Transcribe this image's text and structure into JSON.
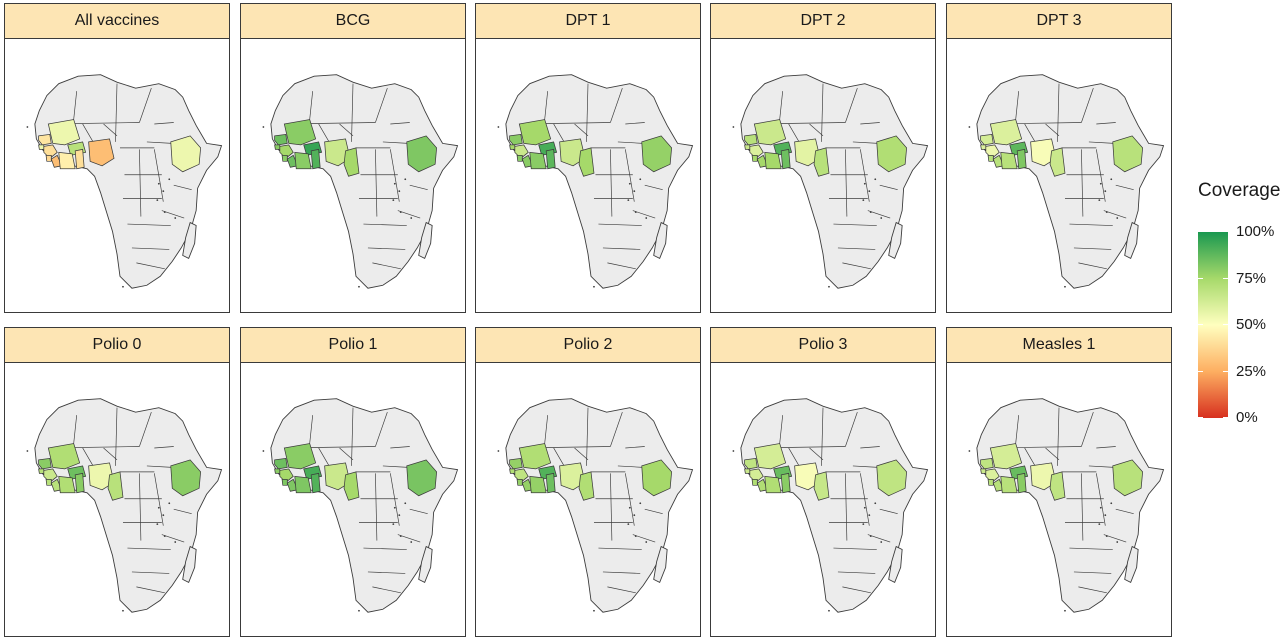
{
  "legend": {
    "title": "Coverage",
    "ticks": [
      {
        "label": "100%",
        "value": 100
      },
      {
        "label": "75%",
        "value": 75
      },
      {
        "label": "50%",
        "value": 50
      },
      {
        "label": "25%",
        "value": 25
      },
      {
        "label": "0%",
        "value": 0
      }
    ],
    "colors": [
      "#d7301f",
      "#fdae61",
      "#ffffbf",
      "#a6d96a",
      "#1a9850"
    ]
  },
  "map_colors": {
    "land": "#ececec",
    "border": "#3c3c3c"
  },
  "panels": [
    {
      "title": "All vaccines",
      "coverage": {
        "senegal": 42,
        "guinea_bissau": 55,
        "guinea": 40,
        "sierra_leone": 38,
        "liberia": 30,
        "cote_divoire": 45,
        "mali": 55,
        "burkina_faso": 70,
        "ghana": 40,
        "nigeria": 30,
        "cameroon": 0,
        "ethiopia": 55
      }
    },
    {
      "title": "BCG",
      "coverage": {
        "senegal": 85,
        "guinea_bissau": 80,
        "guinea": 75,
        "sierra_leone": 80,
        "liberia": 85,
        "cote_divoire": 80,
        "mali": 80,
        "burkina_faso": 95,
        "ghana": 90,
        "nigeria": 65,
        "cameroon": 75,
        "ethiopia": 82
      }
    },
    {
      "title": "DPT 1",
      "coverage": {
        "senegal": 80,
        "guinea_bissau": 75,
        "guinea": 65,
        "sierra_leone": 80,
        "liberia": 80,
        "cote_divoire": 80,
        "mali": 75,
        "burkina_faso": 92,
        "ghana": 88,
        "nigeria": 65,
        "cameroon": 75,
        "ethiopia": 78
      }
    },
    {
      "title": "DPT 2",
      "coverage": {
        "senegal": 70,
        "guinea_bissau": 65,
        "guinea": 60,
        "sierra_leone": 75,
        "liberia": 75,
        "cote_divoire": 75,
        "mali": 65,
        "burkina_faso": 90,
        "ghana": 85,
        "nigeria": 58,
        "cameroon": 70,
        "ethiopia": 72
      }
    },
    {
      "title": "DPT 3",
      "coverage": {
        "senegal": 62,
        "guinea_bissau": 60,
        "guinea": 55,
        "sierra_leone": 70,
        "liberia": 70,
        "cote_divoire": 70,
        "mali": 60,
        "burkina_faso": 88,
        "ghana": 82,
        "nigeria": 52,
        "cameroon": 65,
        "ethiopia": 70
      }
    },
    {
      "title": "Polio 0",
      "coverage": {
        "senegal": 80,
        "guinea_bissau": 70,
        "guinea": 65,
        "sierra_leone": 70,
        "liberia": 70,
        "cote_divoire": 72,
        "mali": 72,
        "burkina_faso": 85,
        "ghana": 80,
        "nigeria": 55,
        "cameroon": 70,
        "ethiopia": 80
      }
    },
    {
      "title": "Polio 1",
      "coverage": {
        "senegal": 85,
        "guinea_bissau": 80,
        "guinea": 75,
        "sierra_leone": 82,
        "liberia": 82,
        "cote_divoire": 82,
        "mali": 80,
        "burkina_faso": 92,
        "ghana": 90,
        "nigeria": 65,
        "cameroon": 75,
        "ethiopia": 83
      }
    },
    {
      "title": "Polio 2",
      "coverage": {
        "senegal": 78,
        "guinea_bissau": 72,
        "guinea": 68,
        "sierra_leone": 78,
        "liberia": 78,
        "cote_divoire": 78,
        "mali": 72,
        "burkina_faso": 90,
        "ghana": 85,
        "nigeria": 60,
        "cameroon": 72,
        "ethiopia": 75
      }
    },
    {
      "title": "Polio 3",
      "coverage": {
        "senegal": 68,
        "guinea_bissau": 65,
        "guinea": 62,
        "sierra_leone": 72,
        "liberia": 72,
        "cote_divoire": 72,
        "mali": 62,
        "burkina_faso": 86,
        "ghana": 80,
        "nigeria": 52,
        "cameroon": 66,
        "ethiopia": 68
      }
    },
    {
      "title": "Measles 1",
      "coverage": {
        "senegal": 68,
        "guinea_bissau": 65,
        "guinea": 60,
        "sierra_leone": 70,
        "liberia": 70,
        "cote_divoire": 70,
        "mali": 62,
        "burkina_faso": 86,
        "ghana": 80,
        "nigeria": 55,
        "cameroon": 68,
        "ethiopia": 70
      }
    }
  ]
}
